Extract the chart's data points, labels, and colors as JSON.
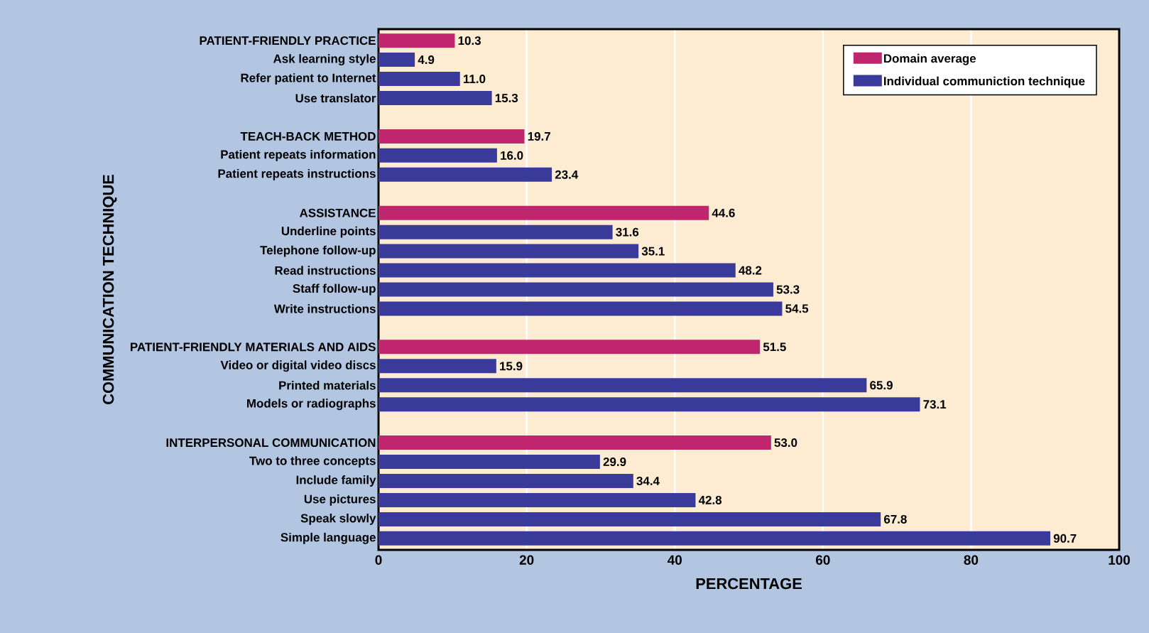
{
  "chart_data": {
    "type": "bar",
    "orientation": "horizontal",
    "xlabel": "PERCENTAGE",
    "ylabel": "COMMUNICATION TECHNIQUE",
    "categories": [
      "PATIENT-FRIENDLY PRACTICE",
      "Ask learning style",
      "Refer patient to Internet",
      "Use translator",
      null,
      "TEACH-BACK METHOD",
      "Patient repeats information",
      "Patient repeats instructions",
      null,
      "ASSISTANCE",
      "Underline points",
      "Telephone follow-up",
      "Read instructions",
      "Staff follow-up",
      "Write instructions",
      null,
      "PATIENT-FRIENDLY MATERIALS AND AIDS",
      "Video or digital video discs",
      "Printed materials",
      "Models or radiographs",
      null,
      "INTERPERSONAL COMMUNICATION",
      "Two to three concepts",
      "Include family",
      "Use pictures",
      "Speak slowly",
      "Simple language"
    ],
    "series": [
      {
        "name": "Domain average",
        "color": "#c0266e",
        "values": [
          10.3,
          null,
          null,
          null,
          null,
          19.7,
          null,
          null,
          null,
          44.6,
          null,
          null,
          null,
          null,
          null,
          null,
          51.5,
          null,
          null,
          null,
          null,
          53.0,
          null,
          null,
          null,
          null,
          null
        ],
        "value_labels": [
          "10.3",
          null,
          null,
          null,
          null,
          "19.7",
          null,
          null,
          null,
          "44.6",
          null,
          null,
          null,
          null,
          null,
          null,
          "51.5",
          null,
          null,
          null,
          null,
          "53.0",
          null,
          null,
          null,
          null,
          null
        ]
      },
      {
        "name": "Individual communiction technique",
        "color": "#3a3a9a",
        "values": [
          null,
          4.9,
          11.0,
          15.3,
          null,
          null,
          16.0,
          23.4,
          null,
          null,
          31.6,
          35.1,
          48.2,
          53.3,
          54.5,
          null,
          null,
          15.9,
          65.9,
          73.1,
          null,
          null,
          29.9,
          34.4,
          42.8,
          67.8,
          90.7
        ],
        "value_labels": [
          null,
          "4.9",
          "11.0",
          "15.3",
          null,
          null,
          "16.0",
          "23.4",
          null,
          null,
          "31.6",
          "35.1",
          "48.2",
          "53.3",
          "54.5",
          null,
          null,
          "15.9",
          "65.9",
          "73.1",
          null,
          null,
          "29.9",
          "34.4",
          "42.8",
          "67.8",
          "90.7"
        ]
      }
    ],
    "xlim": [
      0,
      100
    ],
    "xticks": [
      0,
      20,
      40,
      60,
      80,
      100
    ],
    "grid": "x",
    "legend": "top right"
  }
}
